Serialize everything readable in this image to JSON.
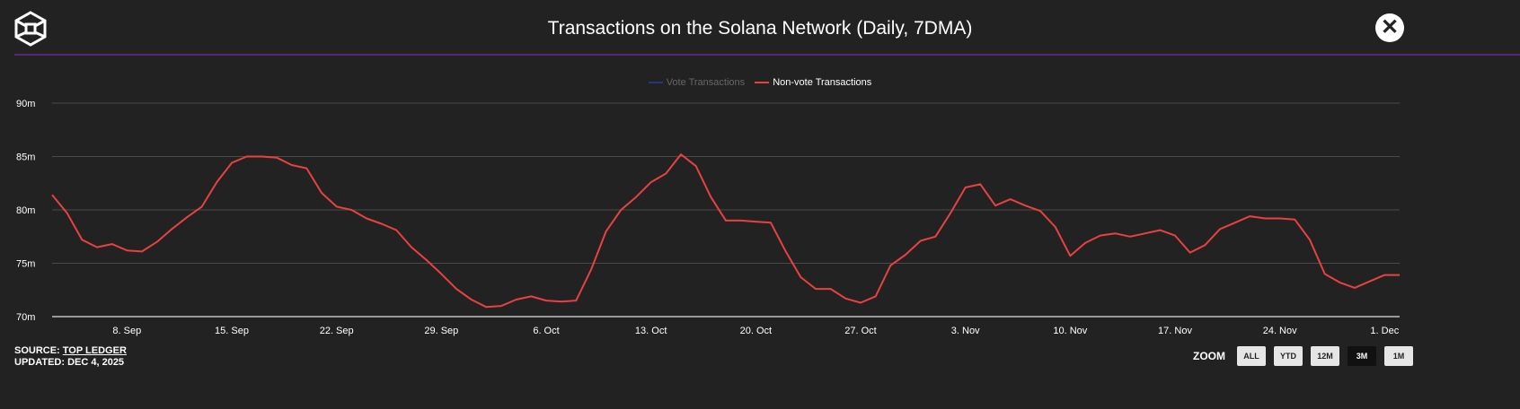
{
  "header": {
    "title": "Transactions on the Solana Network (Daily, 7DMA)",
    "close_icon": "close-icon",
    "logo_icon": "cube-logo-icon"
  },
  "colors": {
    "series_nonvote": "#e84142",
    "series_vote": "#1f3a7a",
    "accent": "#5a2478"
  },
  "footer": {
    "source_label": "SOURCE: ",
    "source_link": "TOP LEDGER",
    "updated": "UPDATED: DEC 4, 2025"
  },
  "zoom": {
    "label": "ZOOM",
    "buttons": [
      "ALL",
      "YTD",
      "12M",
      "3M",
      "1M"
    ],
    "selected": "3M"
  },
  "chart_data": {
    "type": "line",
    "title": "Transactions on the Solana Network (Daily, 7DMA)",
    "xlabel": "",
    "ylabel": "",
    "x_start": "3 Sep 2025",
    "x_unit": "days since start",
    "ylim": [
      70,
      90
    ],
    "y_ticks": [
      {
        "v": 70,
        "label": "70m"
      },
      {
        "v": 75,
        "label": "75m"
      },
      {
        "v": 80,
        "label": "80m"
      },
      {
        "v": 85,
        "label": "85m"
      },
      {
        "v": 90,
        "label": "90m"
      }
    ],
    "x_ticks": [
      {
        "d": 5,
        "label": "8. Sep"
      },
      {
        "d": 12,
        "label": "15. Sep"
      },
      {
        "d": 19,
        "label": "22. Sep"
      },
      {
        "d": 26,
        "label": "29. Sep"
      },
      {
        "d": 33,
        "label": "6. Oct"
      },
      {
        "d": 40,
        "label": "13. Oct"
      },
      {
        "d": 47,
        "label": "20. Oct"
      },
      {
        "d": 54,
        "label": "27. Oct"
      },
      {
        "d": 61,
        "label": "3. Nov"
      },
      {
        "d": 68,
        "label": "10. Nov"
      },
      {
        "d": 75,
        "label": "17. Nov"
      },
      {
        "d": 82,
        "label": "24. Nov"
      },
      {
        "d": 89,
        "label": "1. Dec"
      }
    ],
    "legend": [
      {
        "name": "Vote Transactions",
        "hidden": true
      },
      {
        "name": "Non-vote Transactions",
        "hidden": false
      }
    ],
    "legend_position": "top-center",
    "grid": true,
    "series": [
      {
        "name": "Non-vote Transactions",
        "unit": "millions",
        "values": [
          81.4,
          79.7,
          77.2,
          76.5,
          76.8,
          76.2,
          76.1,
          77.0,
          78.2,
          79.3,
          80.3,
          82.6,
          84.4,
          85.0,
          85.0,
          84.9,
          84.2,
          83.9,
          81.6,
          80.3,
          80.0,
          79.2,
          78.7,
          78.1,
          76.5,
          75.3,
          74.0,
          72.6,
          71.6,
          70.9,
          71.0,
          71.6,
          71.9,
          71.5,
          71.4,
          71.5,
          74.4,
          78.0,
          80.0,
          81.2,
          82.6,
          83.4,
          85.2,
          84.1,
          81.2,
          79.0,
          79.0,
          78.9,
          78.8,
          76.1,
          73.7,
          72.6,
          72.6,
          71.7,
          71.3,
          71.9,
          74.8,
          75.8,
          77.1,
          77.5,
          79.7,
          82.1,
          82.4,
          80.4,
          81.0,
          80.4,
          79.9,
          78.4,
          75.7,
          76.9,
          77.6,
          77.8,
          77.5,
          77.8,
          78.1,
          77.6,
          76.0,
          76.7,
          78.2,
          78.8,
          79.4,
          79.2,
          79.2,
          79.1,
          77.2,
          74.0,
          73.2,
          72.7,
          73.3,
          73.9,
          73.9
        ]
      }
    ]
  }
}
